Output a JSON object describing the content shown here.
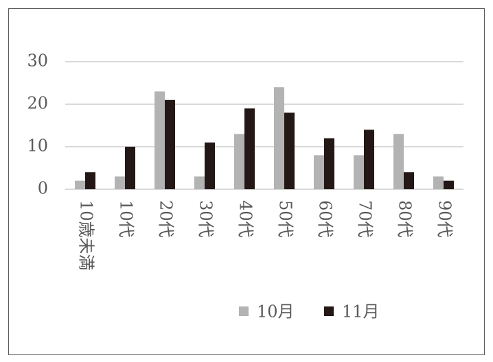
{
  "chart_data": {
    "type": "bar",
    "categories": [
      "10歳未満",
      "10代",
      "20代",
      "30代",
      "40代",
      "50代",
      "60代",
      "70代",
      "80代",
      "90代"
    ],
    "series": [
      {
        "name": "10月",
        "color": "#b3b3b3",
        "values": [
          2,
          3,
          23,
          3,
          13,
          24,
          8,
          8,
          13,
          3
        ]
      },
      {
        "name": "11月",
        "color": "#231815",
        "values": [
          4,
          10,
          21,
          11,
          19,
          18,
          12,
          14,
          4,
          2
        ]
      }
    ],
    "ylim": [
      0,
      30
    ],
    "yticks": [
      0,
      10,
      20,
      30
    ],
    "grid": true,
    "legend": "bottom"
  }
}
